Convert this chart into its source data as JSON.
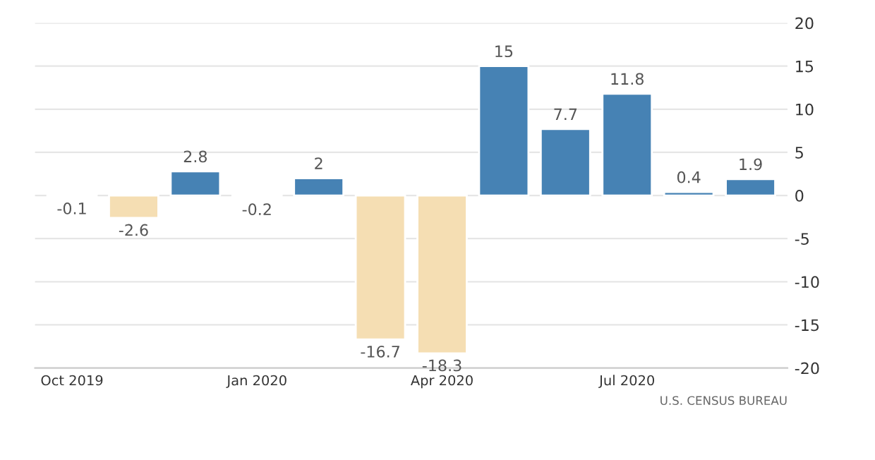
{
  "chart_data": {
    "type": "bar",
    "categories": [
      "Oct 2019",
      null,
      null,
      "Jan 2020",
      null,
      null,
      "Apr 2020",
      null,
      null,
      "Jul 2020",
      null,
      null
    ],
    "values": [
      -0.1,
      -2.6,
      2.8,
      -0.2,
      2,
      -16.7,
      -18.3,
      15,
      7.7,
      11.8,
      0.4,
      1.9
    ],
    "colors": [
      "#f5deb3",
      "#f5deb3",
      "#4682b4",
      "#f5deb3",
      "#4682b4",
      "#f5deb3",
      "#f5deb3",
      "#4682b4",
      "#4682b4",
      "#4682b4",
      "#4682b4",
      "#4682b4"
    ],
    "ylim": [
      -20,
      20
    ],
    "yticks": [
      -20,
      -15,
      -10,
      -5,
      0,
      5,
      10,
      15,
      20
    ],
    "grid": "y",
    "data_labels": true,
    "annotations": [
      "U.S. CENSUS BUREAU"
    ]
  }
}
